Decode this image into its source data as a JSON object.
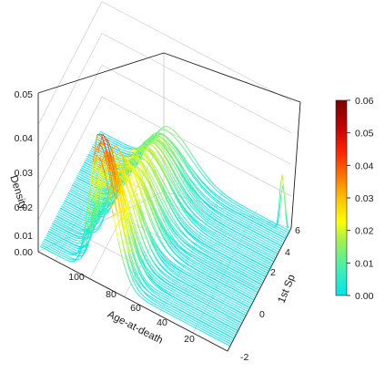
{
  "chart_data": {
    "type": "line",
    "title": "",
    "zlabel": "Density",
    "xlabel": "Age-at-death",
    "ylabel": "1st Sp",
    "zlim": [
      0,
      0.05
    ],
    "xlim": [
      0,
      110
    ],
    "ylim": [
      -2,
      6
    ],
    "z_ticks": [
      "0.00",
      "0.01",
      "0.02",
      "0.03",
      "0.04",
      "0.05"
    ],
    "x_ticks": [
      "20",
      "40",
      "60",
      "80",
      "100"
    ],
    "y_ticks": [
      "-2",
      "0",
      "2",
      "4",
      "6"
    ],
    "colorbar": {
      "ticks": [
        "0.00",
        "0.01",
        "0.02",
        "0.03",
        "0.04",
        "0.05",
        "0.06"
      ],
      "range": [
        0,
        0.06
      ],
      "colors": [
        "#00e5ee",
        "#40f0b0",
        "#a0f050",
        "#ffff00",
        "#ffc000",
        "#ff7000",
        "#ff2000",
        "#c00000",
        "#7a0000"
      ]
    },
    "description_of_series": "Family of density curves of age-at-death, one per value of 1st Sp; peak age ~70-78, peak density rising from ~0.012 at 1st Sp=5.5 to ~0.04 at 1st Sp=-1.5, with a young-age spike near 1st Sp≈5.5",
    "series": [
      {
        "sp": 5.5,
        "mu": 72,
        "sd": 14,
        "peak": 0.012
      },
      {
        "sp": 5.0,
        "mu": 72,
        "sd": 13.5,
        "peak": 0.013
      },
      {
        "sp": 4.5,
        "mu": 72,
        "sd": 13.5,
        "peak": 0.014
      },
      {
        "sp": 4.0,
        "mu": 73,
        "sd": 13,
        "peak": 0.015
      },
      {
        "sp": 3.5,
        "mu": 73,
        "sd": 13,
        "peak": 0.016
      },
      {
        "sp": 3.0,
        "mu": 73,
        "sd": 12.5,
        "peak": 0.017
      },
      {
        "sp": 2.5,
        "mu": 74,
        "sd": 12.5,
        "peak": 0.018
      },
      {
        "sp": 2.0,
        "mu": 74,
        "sd": 12,
        "peak": 0.019
      },
      {
        "sp": 1.5,
        "mu": 74,
        "sd": 12,
        "peak": 0.021
      },
      {
        "sp": 1.0,
        "mu": 75,
        "sd": 11.5,
        "peak": 0.023
      },
      {
        "sp": 0.5,
        "mu": 75,
        "sd": 11,
        "peak": 0.025
      },
      {
        "sp": 0.0,
        "mu": 75,
        "sd": 10.5,
        "peak": 0.028
      },
      {
        "sp": -0.5,
        "mu": 76,
        "sd": 10,
        "peak": 0.031
      },
      {
        "sp": -1.0,
        "mu": 76,
        "sd": 9.5,
        "peak": 0.035
      },
      {
        "sp": -1.5,
        "mu": 76,
        "sd": 9,
        "peak": 0.04
      }
    ]
  }
}
